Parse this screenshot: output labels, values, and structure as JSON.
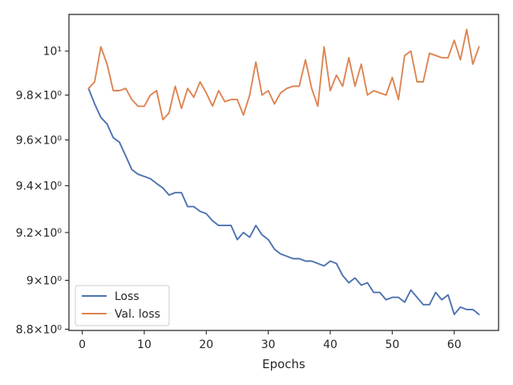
{
  "chart_data": {
    "type": "line",
    "title": "",
    "xlabel": "Epochs",
    "ylabel": "",
    "x_ticks": [
      0,
      10,
      20,
      30,
      40,
      50,
      60
    ],
    "y_ticks": [
      {
        "value": 8.8,
        "label": "8.8×10⁰"
      },
      {
        "value": 9.0,
        "label": "9×10⁰"
      },
      {
        "value": 9.2,
        "label": "9.2×10⁰"
      },
      {
        "value": 9.4,
        "label": "9.4×10⁰"
      },
      {
        "value": 9.6,
        "label": "9.6×10⁰"
      },
      {
        "value": 9.8,
        "label": "9.8×10⁰"
      },
      {
        "value": 10.0,
        "label": "10¹"
      }
    ],
    "xlim": [
      -2.15,
      67.15
    ],
    "ylim": [
      8.795,
      10.17
    ],
    "y_scale": "log",
    "grid": false,
    "legend_position": "lower-left",
    "x": [
      1,
      2,
      3,
      4,
      5,
      6,
      7,
      8,
      9,
      10,
      11,
      12,
      13,
      14,
      15,
      16,
      17,
      18,
      19,
      20,
      21,
      22,
      23,
      24,
      25,
      26,
      27,
      28,
      29,
      30,
      31,
      32,
      33,
      34,
      35,
      36,
      37,
      38,
      39,
      40,
      41,
      42,
      43,
      44,
      45,
      46,
      47,
      48,
      49,
      50,
      51,
      52,
      53,
      54,
      55,
      56,
      57,
      58,
      59,
      60,
      61,
      62,
      63,
      64
    ],
    "series": [
      {
        "name": "Loss",
        "color": "#4c72b0",
        "values": [
          9.83,
          9.76,
          9.7,
          9.67,
          9.61,
          9.59,
          9.53,
          9.47,
          9.45,
          9.44,
          9.43,
          9.41,
          9.39,
          9.36,
          9.37,
          9.37,
          9.31,
          9.31,
          9.29,
          9.28,
          9.25,
          9.23,
          9.23,
          9.23,
          9.17,
          9.2,
          9.18,
          9.23,
          9.19,
          9.17,
          9.13,
          9.11,
          9.1,
          9.09,
          9.09,
          9.08,
          9.08,
          9.07,
          9.06,
          9.08,
          9.07,
          9.02,
          8.99,
          9.01,
          8.98,
          8.99,
          8.95,
          8.95,
          8.92,
          8.93,
          8.93,
          8.91,
          8.96,
          8.93,
          8.9,
          8.9,
          8.95,
          8.92,
          8.94,
          8.86,
          8.89,
          8.88,
          8.88,
          8.86
        ]
      },
      {
        "name": "Val. loss",
        "color": "#dd8452",
        "values": [
          9.83,
          9.86,
          10.02,
          9.94,
          9.82,
          9.82,
          9.83,
          9.78,
          9.75,
          9.75,
          9.8,
          9.82,
          9.69,
          9.72,
          9.84,
          9.74,
          9.83,
          9.79,
          9.86,
          9.81,
          9.75,
          9.82,
          9.77,
          9.78,
          9.78,
          9.71,
          9.8,
          9.95,
          9.8,
          9.82,
          9.76,
          9.81,
          9.83,
          9.84,
          9.84,
          9.96,
          9.83,
          9.75,
          10.02,
          9.82,
          9.89,
          9.84,
          9.97,
          9.84,
          9.94,
          9.8,
          9.82,
          9.81,
          9.8,
          9.88,
          9.78,
          9.98,
          10.0,
          9.86,
          9.86,
          9.99,
          9.98,
          9.97,
          9.97,
          10.05,
          9.96,
          10.1,
          9.94,
          10.02
        ]
      }
    ]
  }
}
